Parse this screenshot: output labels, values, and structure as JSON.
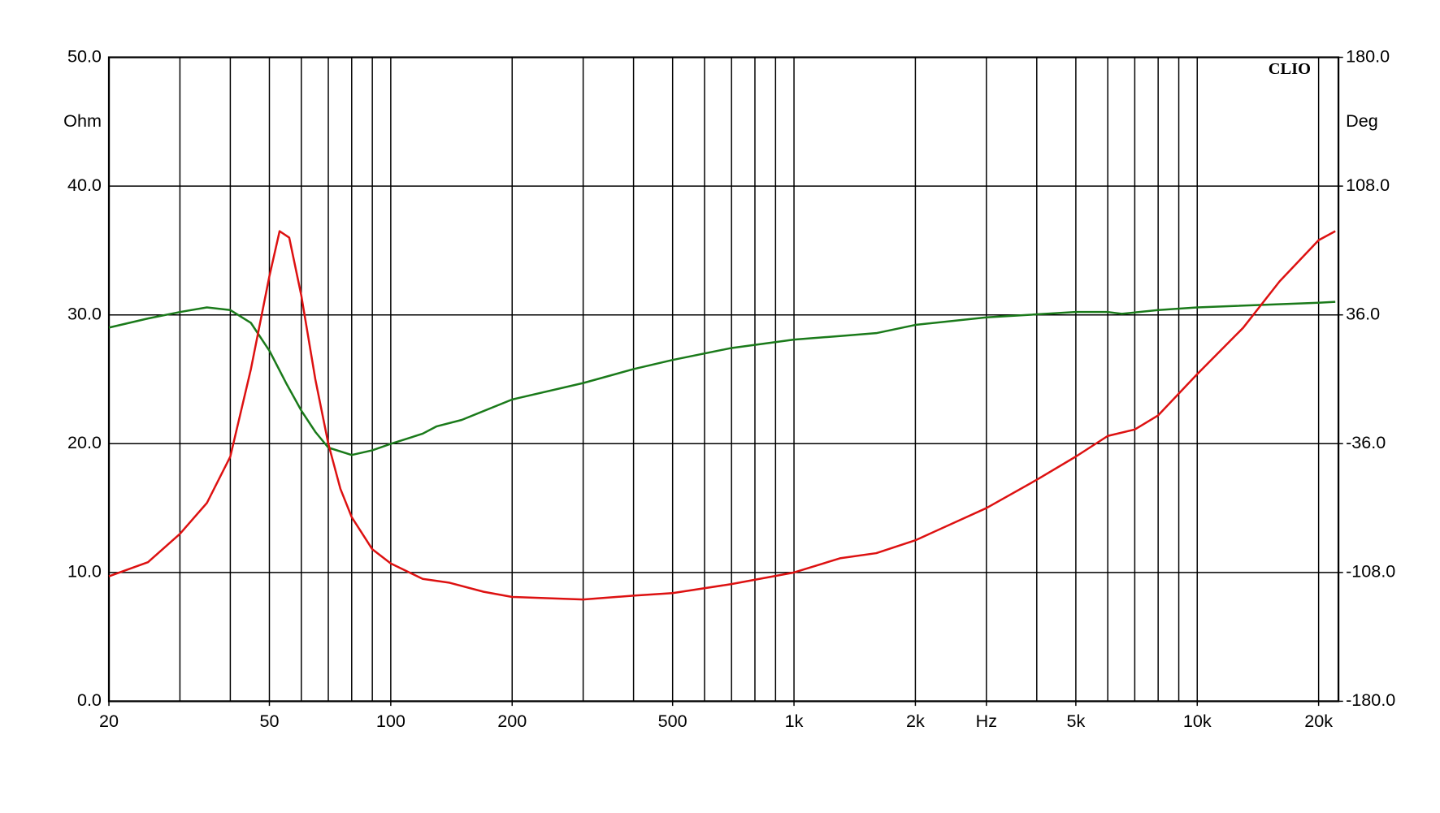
{
  "chart_data": {
    "type": "line",
    "watermark": "CLIO",
    "ylabel": "Ohm",
    "y2label": "Deg",
    "xlog": true,
    "grid": true,
    "xlim": [
      20,
      22400
    ],
    "xticks": [
      20,
      50,
      100,
      200,
      500,
      {
        "value": 1000,
        "label": "1k"
      },
      {
        "value": 2000,
        "label": "2k"
      },
      {
        "value": 3000,
        "label": "Hz"
      },
      {
        "value": 5000,
        "label": "5k"
      },
      {
        "value": 10000,
        "label": "10k"
      },
      {
        "value": 20000,
        "label": "20k"
      }
    ],
    "xgrid": [
      30,
      40,
      50,
      60,
      70,
      80,
      90,
      100,
      200,
      300,
      400,
      500,
      600,
      700,
      800,
      900,
      1000,
      2000,
      3000,
      4000,
      5000,
      6000,
      7000,
      8000,
      9000,
      10000,
      20000
    ],
    "ylim": [
      0,
      50
    ],
    "yticks": [
      {
        "value": 0,
        "label": "0.0"
      },
      {
        "value": 10,
        "label": "10.0"
      },
      {
        "value": 20,
        "label": "20.0"
      },
      {
        "value": 30,
        "label": "30.0"
      },
      {
        "value": 40,
        "label": "40.0"
      },
      {
        "value": 50,
        "label": "50.0"
      }
    ],
    "y2lim": [
      -180,
      180
    ],
    "y2ticks": [
      {
        "value": -180,
        "label": "-180.0"
      },
      {
        "value": -108,
        "label": "-108.0"
      },
      {
        "value": -36,
        "label": "-36.0"
      },
      {
        "value": 36,
        "label": "36.0"
      },
      {
        "value": 108,
        "label": "108.0"
      },
      {
        "value": 180,
        "label": "180.0"
      }
    ],
    "series": [
      {
        "color": "#1a7a1a",
        "axis": "y2",
        "x": [
          20,
          25,
          30,
          35,
          40,
          45,
          50,
          55,
          60,
          65,
          70,
          80,
          90,
          100,
          120,
          130,
          150,
          200,
          300,
          400,
          500,
          700,
          1000,
          1300,
          1600,
          2000,
          3000,
          5000,
          6000,
          6500,
          8000,
          10000,
          20000,
          22000
        ],
        "values": [
          28.9,
          34.0,
          37.6,
          40.2,
          38.7,
          31.5,
          16.0,
          -2.1,
          -17.5,
          -29.4,
          -38.2,
          -42.3,
          -39.7,
          -36.1,
          -30.4,
          -26.3,
          -22.7,
          -11.3,
          -2.1,
          5.7,
          10.8,
          17.5,
          22.2,
          24.2,
          25.8,
          30.4,
          34.6,
          37.6,
          37.6,
          36.6,
          38.7,
          40.2,
          42.8,
          43.3
        ]
      },
      {
        "color": "#dd1111",
        "x": [
          20,
          25,
          30,
          35,
          40,
          45,
          50,
          53,
          56,
          60,
          65,
          70,
          75,
          80,
          90,
          100,
          120,
          140,
          170,
          200,
          300,
          400,
          500,
          700,
          1000,
          1300,
          1600,
          2000,
          3000,
          4000,
          5000,
          6000,
          7000,
          8000,
          10000,
          13000,
          16000,
          20000,
          22000
        ],
        "values": [
          9.7,
          10.8,
          13.0,
          15.4,
          19.0,
          25.8,
          33.0,
          36.5,
          36.0,
          31.5,
          25.0,
          20.0,
          16.5,
          14.3,
          11.8,
          10.7,
          9.5,
          9.2,
          8.5,
          8.1,
          7.9,
          8.2,
          8.4,
          9.1,
          10.0,
          11.1,
          11.5,
          12.5,
          15.0,
          17.2,
          19.0,
          20.6,
          21.1,
          22.2,
          25.4,
          29.0,
          32.6,
          35.8,
          36.5
        ]
      }
    ]
  }
}
